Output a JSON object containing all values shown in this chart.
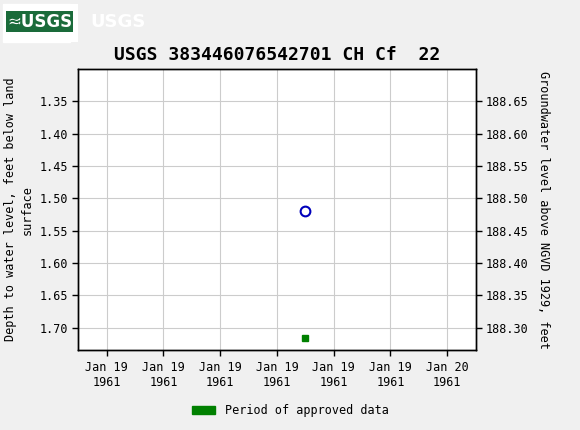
{
  "title": "USGS 383446076542701 CH Cf  22",
  "left_ylabel": "Depth to water level, feet below land\nsurface",
  "right_ylabel": "Groundwater level above NGVD 1929, feet",
  "ylim_left_top": 1.3,
  "ylim_left_bottom": 1.735,
  "ylim_right_top": 188.7,
  "ylim_right_bottom": 188.265,
  "left_yticks": [
    1.35,
    1.4,
    1.45,
    1.5,
    1.55,
    1.6,
    1.65,
    1.7
  ],
  "right_yticks": [
    188.65,
    188.6,
    188.55,
    188.5,
    188.45,
    188.4,
    188.35,
    188.3
  ],
  "data_point_x": 3.5,
  "data_point_y": 1.52,
  "marker_color": "#0000bb",
  "green_marker_x": 3.5,
  "green_marker_y": 1.715,
  "green_marker_color": "#008000",
  "x_tick_labels": [
    "Jan 19\n1961",
    "Jan 19\n1961",
    "Jan 19\n1961",
    "Jan 19\n1961",
    "Jan 19\n1961",
    "Jan 19\n1961",
    "Jan 20\n1961"
  ],
  "x_tick_positions": [
    0,
    1,
    2,
    3,
    4,
    5,
    6
  ],
  "xlim_left": -0.5,
  "xlim_right": 6.5,
  "header_color": "#1a6b3a",
  "bg_color": "#f0f0f0",
  "plot_bg_color": "#ffffff",
  "grid_color": "#cccccc",
  "title_fontsize": 13,
  "tick_fontsize": 8.5,
  "ylabel_fontsize": 8.5,
  "legend_label": "Period of approved data",
  "font_family": "monospace"
}
